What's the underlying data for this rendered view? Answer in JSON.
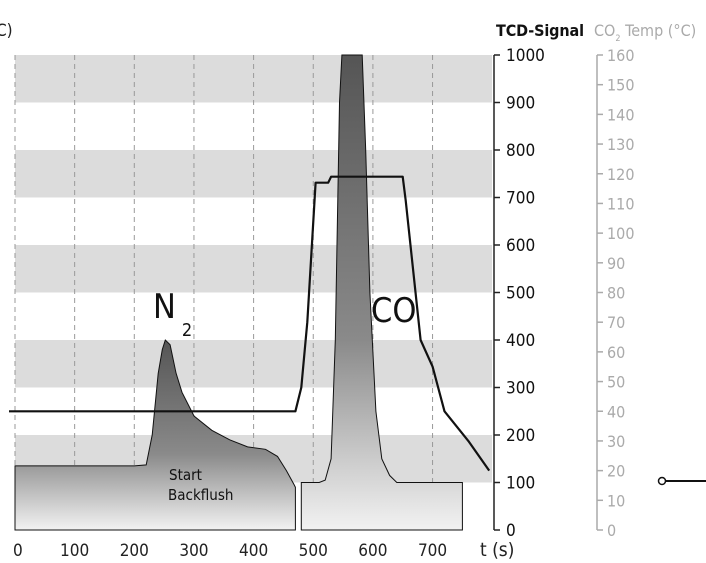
{
  "chart_data": {
    "type": "line",
    "x_axis": {
      "label": "t (s)",
      "ticks": [
        0,
        100,
        200,
        300,
        400,
        500,
        600,
        700
      ],
      "range": [
        0,
        800
      ]
    },
    "y_axis_left_partial_label": "C)",
    "y_axis_right": {
      "label": "TCD-Signal",
      "range": [
        0,
        1000
      ],
      "ticks": [
        0,
        100,
        200,
        300,
        400,
        500,
        600,
        700,
        800,
        900,
        1000
      ]
    },
    "y_axis_temp": {
      "label_prefix": "CO",
      "label_subscript": "2",
      "label_suffix": " Temp (°C)",
      "range": [
        0,
        160
      ],
      "ticks": [
        0,
        10,
        20,
        30,
        40,
        50,
        60,
        70,
        80,
        90,
        100,
        110,
        120,
        130,
        140,
        150,
        160
      ]
    },
    "grid": {
      "horizontal_bands": true,
      "vertical_dashed": true
    },
    "series": [
      {
        "kind": "temperature",
        "color": "#111111",
        "points": [
          [
            -10,
            40
          ],
          [
            470,
            40
          ],
          [
            480,
            48
          ],
          [
            490,
            70
          ],
          [
            504,
            117
          ],
          [
            525,
            117
          ],
          [
            530,
            119
          ],
          [
            580,
            119
          ],
          [
            650,
            119
          ],
          [
            655,
            111
          ],
          [
            680,
            64
          ],
          [
            700,
            55
          ],
          [
            720,
            40
          ],
          [
            760,
            30
          ],
          [
            795,
            20
          ]
        ]
      },
      {
        "kind": "tcd_n2",
        "color": "#666666",
        "points": [
          [
            0,
            135
          ],
          [
            100,
            135
          ],
          [
            200,
            135
          ],
          [
            220,
            137
          ],
          [
            230,
            200
          ],
          [
            240,
            330
          ],
          [
            247,
            380
          ],
          [
            252,
            400
          ],
          [
            260,
            390
          ],
          [
            270,
            330
          ],
          [
            280,
            290
          ],
          [
            300,
            240
          ],
          [
            330,
            210
          ],
          [
            360,
            190
          ],
          [
            390,
            175
          ],
          [
            420,
            170
          ],
          [
            440,
            155
          ],
          [
            455,
            125
          ],
          [
            468,
            95
          ],
          [
            470,
            90
          ],
          [
            470,
            0
          ],
          [
            0,
            0
          ]
        ]
      },
      {
        "kind": "tcd_co",
        "color": "#666666",
        "points": [
          [
            480,
            0
          ],
          [
            480,
            100
          ],
          [
            510,
            100
          ],
          [
            520,
            105
          ],
          [
            530,
            150
          ],
          [
            537,
            400
          ],
          [
            544,
            900
          ],
          [
            548,
            1000
          ],
          [
            582,
            1000
          ],
          [
            588,
            800
          ],
          [
            595,
            500
          ],
          [
            605,
            250
          ],
          [
            615,
            150
          ],
          [
            628,
            115
          ],
          [
            640,
            100
          ],
          [
            750,
            100
          ],
          [
            750,
            0
          ]
        ]
      }
    ],
    "annotations": {
      "n2_main": "N",
      "n2_sub": "2",
      "co": "CO",
      "start": "Start",
      "backflush": "Backflush"
    },
    "colors": {
      "band": "#dcdcdc",
      "grid": "#999999",
      "temp_axis": "#aaaaaa"
    }
  }
}
